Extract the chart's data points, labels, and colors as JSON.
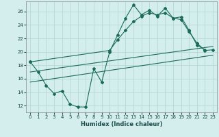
{
  "title": "",
  "xlabel": "Humidex (Indice chaleur)",
  "ylabel": "",
  "bg_color": "#d4eded",
  "grid_color": "#b0d4d4",
  "line_color": "#1a6b5a",
  "x_min": -0.5,
  "x_max": 23.5,
  "y_min": 11,
  "y_max": 27.5,
  "yticks": [
    12,
    14,
    16,
    18,
    20,
    22,
    24,
    26
  ],
  "xticks": [
    0,
    1,
    2,
    3,
    4,
    5,
    6,
    7,
    8,
    9,
    10,
    11,
    12,
    13,
    14,
    15,
    16,
    17,
    18,
    19,
    20,
    21,
    22,
    23
  ],
  "line1_x": [
    0,
    1,
    2,
    3,
    4,
    5,
    6,
    7,
    8,
    9,
    10,
    11,
    12,
    13,
    14,
    15,
    16,
    17,
    18,
    19,
    20,
    21,
    22
  ],
  "line1_y": [
    18.5,
    17.0,
    15.0,
    13.8,
    14.2,
    12.2,
    11.8,
    11.8,
    17.5,
    15.5,
    20.0,
    22.5,
    25.0,
    27.0,
    25.5,
    26.2,
    25.3,
    26.5,
    25.0,
    25.2,
    23.2,
    21.0,
    20.3
  ],
  "line2_x": [
    0,
    10,
    11,
    12,
    13,
    14,
    15,
    16,
    17,
    18,
    19,
    20,
    21,
    22,
    23
  ],
  "line2_y": [
    18.5,
    20.2,
    21.8,
    23.2,
    24.5,
    25.3,
    25.8,
    25.5,
    25.8,
    25.0,
    24.8,
    23.0,
    21.3,
    20.2,
    20.3
  ],
  "line3_x": [
    0,
    23
  ],
  "line3_y": [
    15.5,
    19.5
  ],
  "line4_x": [
    0,
    23
  ],
  "line4_y": [
    17.0,
    20.8
  ]
}
